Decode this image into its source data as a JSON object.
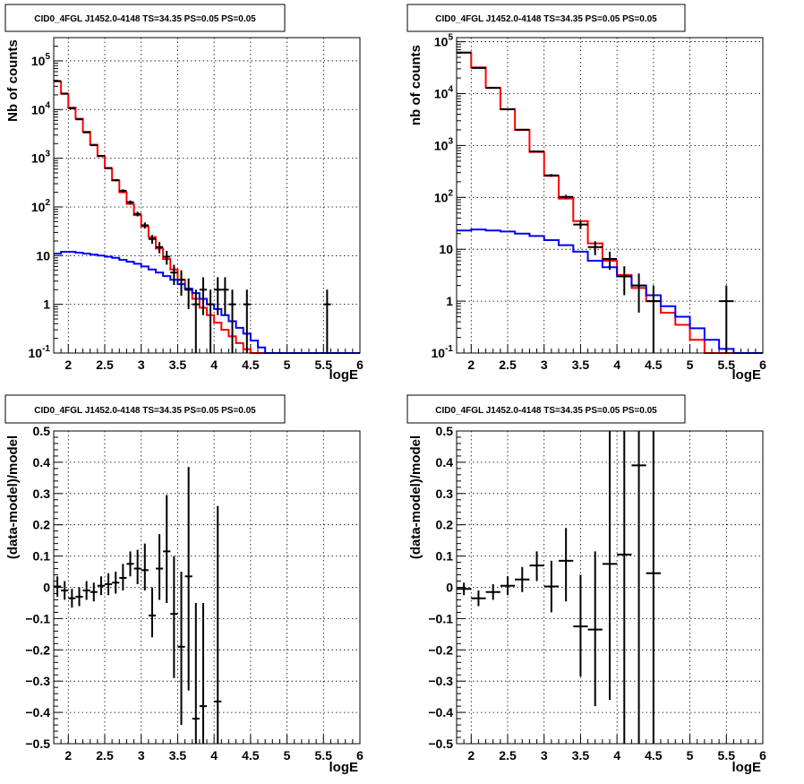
{
  "colors": {
    "data": "#000000",
    "total_model": "#ff0000",
    "background_model": "#0000ff",
    "grid": "#000000"
  },
  "chart_data": [
    {
      "type": "line",
      "title": "CID0_4FGL J1452.0-4148 TS=34.35 PS=0.05 PS=0.05",
      "xlabel": "logE",
      "ylabel": "Nb of counts",
      "xlim": [
        1.8,
        6.0
      ],
      "ylim": [
        0.1,
        300000
      ],
      "yscale": "log",
      "grid": true,
      "x_ticks": [
        2,
        2.5,
        3,
        3.5,
        4,
        4.5,
        5,
        5.5,
        6
      ],
      "x_tick_labels": [
        "2",
        "2.5",
        "3",
        "3.5",
        "4",
        "4.5",
        "5",
        "5.5",
        "6"
      ],
      "y_ticks": [
        0.1,
        1,
        10,
        100,
        1000,
        10000,
        100000
      ],
      "y_tick_labels": [
        "10^-1",
        "1",
        "10",
        "10^2",
        "10^3",
        "10^4",
        "10^5"
      ],
      "bin_edges": [
        1.8,
        1.9,
        2.0,
        2.1,
        2.2,
        2.3,
        2.4,
        2.5,
        2.6,
        2.7,
        2.8,
        2.9,
        3.0,
        3.1,
        3.2,
        3.3,
        3.4,
        3.5,
        3.6,
        3.7,
        3.8,
        3.9,
        4.0,
        4.1,
        4.2,
        4.3,
        4.4,
        4.5,
        4.6,
        4.7,
        4.8,
        4.9,
        5.0,
        5.1,
        5.2,
        5.3,
        5.4,
        5.5,
        5.6,
        5.7,
        5.8,
        5.9,
        6.0
      ],
      "series": [
        {
          "values": [
            38000,
            21000,
            11000,
            6500,
            3500,
            1900,
            1100,
            620,
            350,
            200,
            115,
            68,
            40,
            24,
            14,
            8.5,
            5.2,
            3.2,
            2.0,
            1.3,
            0.85,
            0.6,
            0.42,
            0.3,
            0.22,
            0.16,
            0.12,
            0.1,
            0.1,
            0.1,
            0.1,
            0.1,
            0.1,
            0.1,
            0.1,
            0.1,
            0.1,
            0.1,
            0.1,
            0.1,
            0.1,
            0.1
          ]
        },
        {
          "values": [
            11,
            12,
            12,
            11.5,
            11,
            10.5,
            10,
            9.5,
            9,
            8.2,
            7.5,
            6.8,
            6,
            5.2,
            4.5,
            3.8,
            3.2,
            2.6,
            2.1,
            1.7,
            1.3,
            1.0,
            0.8,
            0.6,
            0.45,
            0.33,
            0.25,
            0.18,
            0.13,
            0.1,
            0.1,
            0.1,
            0.1,
            0.1,
            0.1,
            0.1,
            0.1,
            0.1,
            0.1,
            0.1,
            0.1,
            0.1
          ]
        },
        {
          "points": [
            {
              "x": 1.85,
              "y": 38500,
              "ylo": 38300,
              "yhi": 38700
            },
            {
              "x": 1.95,
              "y": 21300,
              "ylo": 21150,
              "yhi": 21450
            },
            {
              "x": 2.05,
              "y": 10600,
              "ylo": 10500,
              "yhi": 10700
            },
            {
              "x": 2.15,
              "y": 6300,
              "ylo": 6220,
              "yhi": 6380
            },
            {
              "x": 2.25,
              "y": 3400,
              "ylo": 3340,
              "yhi": 3460
            },
            {
              "x": 2.35,
              "y": 1850,
              "ylo": 1810,
              "yhi": 1890
            },
            {
              "x": 2.45,
              "y": 1120,
              "ylo": 1085,
              "yhi": 1155
            },
            {
              "x": 2.55,
              "y": 630,
              "ylo": 605,
              "yhi": 655
            },
            {
              "x": 2.65,
              "y": 355,
              "ylo": 336,
              "yhi": 374
            },
            {
              "x": 2.75,
              "y": 215,
              "ylo": 200,
              "yhi": 230
            },
            {
              "x": 2.85,
              "y": 125,
              "ylo": 114,
              "yhi": 136
            },
            {
              "x": 2.95,
              "y": 72,
              "ylo": 64,
              "yhi": 80
            },
            {
              "x": 3.05,
              "y": 42,
              "ylo": 36,
              "yhi": 48
            },
            {
              "x": 3.15,
              "y": 22,
              "ylo": 17.5,
              "yhi": 26.5
            },
            {
              "x": 3.25,
              "y": 15,
              "ylo": 11.2,
              "yhi": 19
            },
            {
              "x": 3.35,
              "y": 9.5,
              "ylo": 6.5,
              "yhi": 12.5
            },
            {
              "x": 3.45,
              "y": 4.5,
              "ylo": 2.5,
              "yhi": 6.5
            },
            {
              "x": 3.55,
              "y": 3.2,
              "ylo": 1.5,
              "yhi": 5.0
            },
            {
              "x": 3.65,
              "y": 2.0,
              "ylo": 0.8,
              "yhi": 3.4
            },
            {
              "x": 3.75,
              "y": 1.0,
              "ylo": 0.1,
              "yhi": 2.0
            },
            {
              "x": 3.85,
              "y": 2.0,
              "ylo": 0.6,
              "yhi": 3.6
            },
            {
              "x": 3.95,
              "y": 1.0,
              "ylo": 0.1,
              "yhi": 2.0
            },
            {
              "x": 4.05,
              "y": 2.0,
              "ylo": 0.6,
              "yhi": 3.6
            },
            {
              "x": 4.15,
              "y": 2.0,
              "ylo": 0.6,
              "yhi": 3.6
            },
            {
              "x": 4.25,
              "y": 1.0,
              "ylo": 0.1,
              "yhi": 2.0
            },
            {
              "x": 4.45,
              "y": 1.0,
              "ylo": 0.1,
              "yhi": 2.0
            },
            {
              "x": 5.55,
              "y": 1.0,
              "ylo": 0.1,
              "yhi": 2.0
            }
          ]
        }
      ]
    },
    {
      "type": "line",
      "title": "CID0_4FGL J1452.0-4148 TS=34.35 PS=0.05 PS=0.05",
      "xlabel": "logE",
      "ylabel": "nb of counts",
      "xlim": [
        1.8,
        6.0
      ],
      "ylim": [
        0.1,
        120000
      ],
      "yscale": "log",
      "grid": true,
      "x_ticks": [
        2,
        2.5,
        3,
        3.5,
        4,
        4.5,
        5,
        5.5,
        6
      ],
      "x_tick_labels": [
        "2",
        "2.5",
        "3",
        "3.5",
        "4",
        "4.5",
        "5",
        "5.5",
        "6"
      ],
      "y_ticks": [
        0.1,
        1,
        10,
        100,
        1000,
        10000,
        100000
      ],
      "y_tick_labels": [
        "10^-1",
        "1",
        "10",
        "10^2",
        "10^3",
        "10^4",
        "10^5"
      ],
      "bin_edges": [
        1.8,
        2.0,
        2.2,
        2.4,
        2.6,
        2.8,
        3.0,
        3.2,
        3.4,
        3.6,
        3.8,
        4.0,
        4.2,
        4.4,
        4.6,
        4.8,
        5.0,
        5.2,
        5.4,
        5.6,
        5.8,
        6.0
      ],
      "series": [
        {
          "values": [
            62000,
            32000,
            13000,
            5000,
            2000,
            750,
            260,
            95,
            35,
            13,
            6,
            3.2,
            1.8,
            1.0,
            0.6,
            0.35,
            0.18,
            0.1,
            0.1,
            0.1,
            0.1
          ]
        },
        {
          "values": [
            23,
            24,
            23,
            22,
            20,
            18,
            15,
            12,
            9,
            6,
            4.5,
            3.0,
            2.0,
            1.3,
            0.8,
            0.5,
            0.3,
            0.18,
            0.12,
            0.1,
            0.1
          ]
        },
        {
          "points": [
            {
              "x": 1.9,
              "y": 61500,
              "ylo": 61200,
              "yhi": 61800
            },
            {
              "x": 2.1,
              "y": 31200,
              "ylo": 31000,
              "yhi": 31400
            },
            {
              "x": 2.3,
              "y": 12900,
              "ylo": 12780,
              "yhi": 13020
            },
            {
              "x": 2.5,
              "y": 5000,
              "ylo": 4930,
              "yhi": 5070
            },
            {
              "x": 2.7,
              "y": 2020,
              "ylo": 1975,
              "yhi": 2065
            },
            {
              "x": 2.9,
              "y": 770,
              "ylo": 742,
              "yhi": 798
            },
            {
              "x": 3.1,
              "y": 265,
              "ylo": 249,
              "yhi": 281
            },
            {
              "x": 3.3,
              "y": 102,
              "ylo": 92,
              "yhi": 112
            },
            {
              "x": 3.5,
              "y": 30,
              "ylo": 24.5,
              "yhi": 35.5
            },
            {
              "x": 3.7,
              "y": 11,
              "ylo": 7.7,
              "yhi": 14.3
            },
            {
              "x": 3.9,
              "y": 6.5,
              "ylo": 4.0,
              "yhi": 9.0
            },
            {
              "x": 4.1,
              "y": 3.0,
              "ylo": 1.3,
              "yhi": 4.7
            },
            {
              "x": 4.3,
              "y": 2.0,
              "ylo": 0.6,
              "yhi": 3.4
            },
            {
              "x": 4.5,
              "y": 1.0,
              "ylo": 0.1,
              "yhi": 2.0
            },
            {
              "x": 5.5,
              "y": 1.0,
              "ylo": 0.1,
              "yhi": 2.0
            }
          ]
        }
      ]
    },
    {
      "type": "scatter",
      "title": "CID0_4FGL J1452.0-4148 TS=34.35 PS=0.05 PS=0.05",
      "xlabel": "logE",
      "ylabel": "(data-model)/model",
      "xlim": [
        1.8,
        6.0
      ],
      "ylim": [
        -0.5,
        0.5
      ],
      "grid": true,
      "x_ticks": [
        2,
        2.5,
        3,
        3.5,
        4,
        4.5,
        5,
        5.5,
        6
      ],
      "x_tick_labels": [
        "2",
        "2.5",
        "3",
        "3.5",
        "4",
        "4.5",
        "5",
        "5.5",
        "6"
      ],
      "y_ticks": [
        -0.5,
        -0.4,
        -0.3,
        -0.2,
        -0.1,
        0,
        0.1,
        0.2,
        0.3,
        0.4,
        0.5
      ],
      "y_tick_labels": [
        "−0.5",
        "−0.4",
        "−0.3",
        "−0.2",
        "−0.1",
        "0",
        "0.1",
        "0.2",
        "0.3",
        "0.4",
        "0.5"
      ],
      "xerr": 0.05,
      "points": [
        {
          "x": 1.85,
          "y": 0.003,
          "ylo": -0.03,
          "yhi": 0.035
        },
        {
          "x": 1.95,
          "y": -0.01,
          "ylo": -0.04,
          "yhi": 0.02
        },
        {
          "x": 2.05,
          "y": -0.035,
          "ylo": -0.065,
          "yhi": -0.005
        },
        {
          "x": 2.15,
          "y": -0.03,
          "ylo": -0.06,
          "yhi": 0.0
        },
        {
          "x": 2.25,
          "y": -0.01,
          "ylo": -0.04,
          "yhi": 0.02
        },
        {
          "x": 2.35,
          "y": -0.015,
          "ylo": -0.045,
          "yhi": 0.015
        },
        {
          "x": 2.45,
          "y": 0.005,
          "ylo": -0.025,
          "yhi": 0.035
        },
        {
          "x": 2.55,
          "y": 0.01,
          "ylo": -0.025,
          "yhi": 0.045
        },
        {
          "x": 2.65,
          "y": 0.015,
          "ylo": -0.02,
          "yhi": 0.05
        },
        {
          "x": 2.75,
          "y": 0.03,
          "ylo": -0.01,
          "yhi": 0.075
        },
        {
          "x": 2.85,
          "y": 0.075,
          "ylo": 0.035,
          "yhi": 0.115
        },
        {
          "x": 2.95,
          "y": 0.06,
          "ylo": 0.01,
          "yhi": 0.12
        },
        {
          "x": 3.05,
          "y": 0.055,
          "ylo": -0.01,
          "yhi": 0.14
        },
        {
          "x": 3.15,
          "y": -0.09,
          "ylo": -0.16,
          "yhi": 0.0
        },
        {
          "x": 3.25,
          "y": 0.06,
          "ylo": -0.04,
          "yhi": 0.17
        },
        {
          "x": 3.35,
          "y": 0.115,
          "ylo": -0.05,
          "yhi": 0.295
        },
        {
          "x": 3.45,
          "y": -0.085,
          "ylo": -0.29,
          "yhi": 0.1
        },
        {
          "x": 3.55,
          "y": -0.19,
          "ylo": -0.44,
          "yhi": 0.05
        },
        {
          "x": 3.65,
          "y": 0.035,
          "ylo": -0.33,
          "yhi": 0.385
        },
        {
          "x": 3.75,
          "y": -0.42,
          "ylo": -0.5,
          "yhi": -0.05
        },
        {
          "x": 3.85,
          "y": -0.38,
          "ylo": -0.5,
          "yhi": -0.05
        },
        {
          "x": 4.05,
          "y": -0.365,
          "ylo": -0.5,
          "yhi": 0.26
        }
      ]
    },
    {
      "type": "scatter",
      "title": "CID0_4FGL J1452.0-4148 TS=34.35 PS=0.05 PS=0.05",
      "xlabel": "logE",
      "ylabel": "(data-model)/model",
      "xlim": [
        1.8,
        6.0
      ],
      "ylim": [
        -0.5,
        0.5
      ],
      "grid": true,
      "x_ticks": [
        2,
        2.5,
        3,
        3.5,
        4,
        4.5,
        5,
        5.5,
        6
      ],
      "x_tick_labels": [
        "2",
        "2.5",
        "3",
        "3.5",
        "4",
        "4.5",
        "5",
        "5.5",
        "6"
      ],
      "y_ticks": [
        -0.5,
        -0.4,
        -0.3,
        -0.2,
        -0.1,
        0,
        0.1,
        0.2,
        0.3,
        0.4,
        0.5
      ],
      "y_tick_labels": [
        "−0.5",
        "−0.4",
        "−0.3",
        "−0.2",
        "−0.1",
        "0",
        "0.1",
        "0.2",
        "0.3",
        "0.4",
        "0.5"
      ],
      "xerr": 0.1,
      "points": [
        {
          "x": 1.9,
          "y": -0.005,
          "ylo": -0.025,
          "yhi": 0.015
        },
        {
          "x": 2.1,
          "y": -0.035,
          "ylo": -0.06,
          "yhi": -0.01
        },
        {
          "x": 2.3,
          "y": -0.015,
          "ylo": -0.04,
          "yhi": 0.01
        },
        {
          "x": 2.5,
          "y": 0.005,
          "ylo": -0.025,
          "yhi": 0.035
        },
        {
          "x": 2.7,
          "y": 0.025,
          "ylo": -0.015,
          "yhi": 0.065
        },
        {
          "x": 2.9,
          "y": 0.07,
          "ylo": 0.02,
          "yhi": 0.115
        },
        {
          "x": 3.1,
          "y": 0.003,
          "ylo": -0.08,
          "yhi": 0.085
        },
        {
          "x": 3.3,
          "y": 0.085,
          "ylo": -0.045,
          "yhi": 0.19
        },
        {
          "x": 3.5,
          "y": -0.125,
          "ylo": -0.285,
          "yhi": 0.04
        },
        {
          "x": 3.7,
          "y": -0.135,
          "ylo": -0.38,
          "yhi": 0.115
        },
        {
          "x": 3.9,
          "y": 0.075,
          "ylo": -0.36,
          "yhi": 0.5
        },
        {
          "x": 4.1,
          "y": 0.105,
          "ylo": -0.5,
          "yhi": 0.5
        },
        {
          "x": 4.3,
          "y": 0.39,
          "ylo": -0.5,
          "yhi": 0.5
        },
        {
          "x": 4.5,
          "y": 0.045,
          "ylo": -0.5,
          "yhi": 0.5
        }
      ]
    }
  ]
}
